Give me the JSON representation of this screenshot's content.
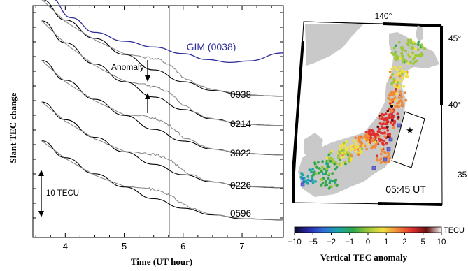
{
  "chart_data": [
    {
      "type": "line",
      "ylabel": "Slant TEC change",
      "xlabel": "Time (UT hour)",
      "xlim": [
        3.45,
        7.7
      ],
      "xticks": [
        "4",
        "5",
        "6",
        "7"
      ],
      "scale_bar_label": "10 TECU",
      "vertical_marker_time": 5.77,
      "annotation": "Anomaly",
      "series": [
        {
          "name": "GIM (0038)",
          "color": "#2c2c9a",
          "x": [
            3.75,
            4.1,
            4.5,
            5.0,
            5.5,
            6.0,
            6.4,
            6.8,
            7.1,
            7.7
          ],
          "y": [
            10.0,
            7.3,
            5.3,
            4.1,
            3.3,
            2.4,
            1.6,
            1.2,
            1.4,
            2.5
          ]
        },
        {
          "name": "0038",
          "color": "#000000",
          "model": {
            "x": [
              3.6,
              4.0,
              4.5,
              5.0,
              5.5,
              6.0,
              6.5,
              7.0,
              7.7
            ],
            "y": [
              13.4,
              10.6,
              8.1,
              5.9,
              3.8,
              2.2,
              1.0,
              0.4,
              0.2
            ]
          },
          "observed": {
            "x": [
              3.6,
              4.0,
              4.5,
              5.0,
              5.4,
              5.6,
              5.8,
              6.0,
              6.4,
              7.0,
              7.7
            ],
            "y": [
              13.4,
              10.4,
              7.9,
              6.0,
              5.5,
              5.2,
              4.4,
              2.8,
              1.3,
              0.4,
              0.2
            ]
          }
        },
        {
          "name": "0214",
          "color": "#000000",
          "model": {
            "x": [
              3.6,
              4.0,
              4.5,
              5.0,
              5.5,
              6.0,
              6.5,
              7.0,
              7.7
            ],
            "y": [
              14.5,
              11.5,
              8.6,
              6.2,
              4.1,
              2.4,
              1.1,
              0.4,
              0.2
            ]
          },
          "observed": {
            "x": [
              3.6,
              4.0,
              4.5,
              5.0,
              5.4,
              5.6,
              5.8,
              6.0,
              6.4,
              7.0,
              7.7
            ],
            "y": [
              14.5,
              11.4,
              8.4,
              6.3,
              5.7,
              5.3,
              4.5,
              3.0,
              1.3,
              0.4,
              0.2
            ]
          }
        },
        {
          "name": "3022",
          "color": "#000000",
          "model": {
            "x": [
              3.6,
              4.0,
              4.5,
              5.0,
              5.5,
              6.0,
              6.5,
              7.0,
              7.7
            ],
            "y": [
              13.1,
              10.4,
              7.8,
              5.6,
              3.7,
              2.1,
              1.0,
              0.4,
              0.2
            ]
          },
          "observed": {
            "x": [
              3.6,
              4.0,
              4.5,
              5.0,
              5.4,
              5.6,
              5.8,
              6.0,
              6.4,
              7.0,
              7.7
            ],
            "y": [
              13.1,
              10.2,
              7.6,
              5.7,
              5.4,
              5.0,
              4.1,
              2.6,
              1.2,
              0.4,
              0.2
            ]
          }
        },
        {
          "name": "0226",
          "color": "#000000",
          "model": {
            "x": [
              3.6,
              4.0,
              4.5,
              5.0,
              5.5,
              6.0,
              6.5,
              7.0,
              7.7
            ],
            "y": [
              11.8,
              9.4,
              7.0,
              5.0,
              3.3,
              1.9,
              0.9,
              0.3,
              0.1
            ]
          },
          "observed": {
            "x": [
              3.6,
              4.0,
              4.5,
              5.0,
              5.4,
              5.6,
              5.8,
              6.0,
              6.4,
              7.0,
              7.7
            ],
            "y": [
              11.8,
              9.2,
              6.8,
              5.1,
              4.8,
              4.5,
              3.8,
              2.4,
              1.1,
              0.3,
              0.1
            ]
          }
        },
        {
          "name": "0596",
          "color": "#000000",
          "model": {
            "x": [
              3.6,
              4.0,
              4.5,
              5.0,
              5.5,
              6.0,
              6.5,
              7.0,
              7.7
            ],
            "y": [
              10.9,
              8.6,
              6.4,
              4.6,
              3.0,
              1.7,
              0.8,
              0.3,
              0.1
            ]
          },
          "observed": {
            "x": [
              3.6,
              4.0,
              4.5,
              5.0,
              5.4,
              5.6,
              5.8,
              6.0,
              6.4,
              7.0,
              7.7
            ],
            "y": [
              10.9,
              8.5,
              6.2,
              4.7,
              4.4,
              4.1,
              3.4,
              2.2,
              1.0,
              0.3,
              0.1
            ]
          }
        }
      ]
    },
    {
      "type": "heatmap",
      "title": "05:45 UT",
      "xlabel": "Vertical TEC anomaly",
      "lon_labels": [
        "140°"
      ],
      "lat_labels": [
        "45°",
        "40°",
        "35"
      ],
      "colorbar": {
        "unit": "TECU",
        "tick_labels": [
          "−10",
          "−5",
          "−2",
          "−1",
          "0",
          "1",
          "2",
          "5",
          "10"
        ],
        "colors": [
          "#0b0b2a",
          "#2a2ab0",
          "#2f6fd8",
          "#1aa6a6",
          "#2ea84a",
          "#9cc83a",
          "#f0e040",
          "#f08a3a",
          "#e03030",
          "#6a1010",
          "#f4f4f4"
        ]
      },
      "legend_symbols": [
        "epicenter-star",
        "gps-station-square"
      ]
    }
  ]
}
